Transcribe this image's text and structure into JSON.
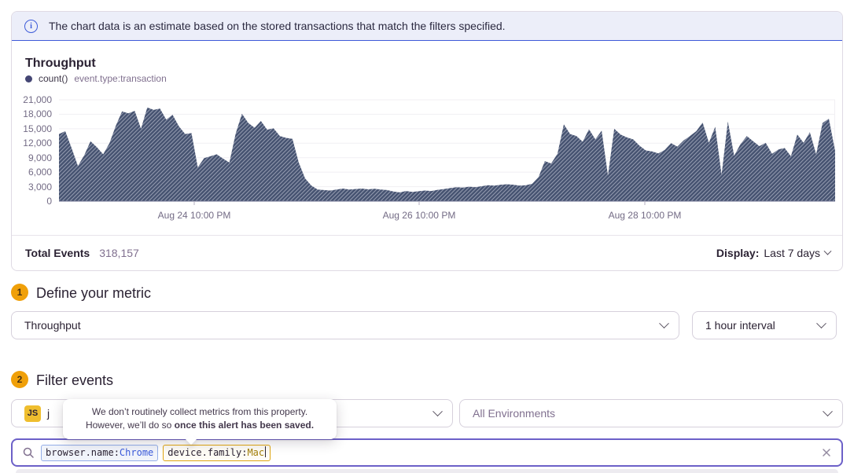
{
  "banner": {
    "text": "The chart data is an estimate based on the stored transactions that match the filters specified."
  },
  "chart": {
    "title": "Throughput",
    "legend": {
      "metric": "count()",
      "filter": "event.type:transaction"
    },
    "footer": {
      "total_label": "Total Events",
      "total_value": "318,157",
      "display_label": "Display:",
      "display_value": "Last 7 days"
    }
  },
  "chart_data": {
    "type": "area",
    "title": "Throughput",
    "subtitle": "count() event.type:transaction",
    "pattern": "diagonal-hatch-estimate",
    "fill_color": "#465371",
    "hatch_color": "#959CB0",
    "grid": "horizontal",
    "ylim": [
      0,
      21000
    ],
    "y_ticks": [
      0,
      3000,
      6000,
      9000,
      12000,
      15000,
      18000,
      21000
    ],
    "y_tick_labels": [
      "0",
      "3,000",
      "6,000",
      "9,000",
      "12,000",
      "15,000",
      "18,000",
      "21,000"
    ],
    "x_ticks": [
      {
        "label": "Aug 24 10:00 PM",
        "pos": 0.1743
      },
      {
        "label": "Aug 26 10:00 PM",
        "pos": 0.464
      },
      {
        "label": "Aug 28 10:00 PM",
        "pos": 0.7548
      }
    ],
    "series": [
      {
        "name": "count()",
        "values": [
          13900,
          14500,
          11000,
          7300,
          9500,
          12400,
          11200,
          9700,
          12000,
          15600,
          18600,
          18200,
          18700,
          15000,
          19400,
          18900,
          19200,
          16900,
          17900,
          15500,
          13900,
          14100,
          7000,
          8900,
          9300,
          9700,
          8800,
          8000,
          14000,
          18100,
          16200,
          15200,
          16600,
          14800,
          15100,
          13500,
          13100,
          12900,
          8000,
          4700,
          3200,
          2400,
          2300,
          2200,
          2400,
          2600,
          2400,
          2500,
          2600,
          2450,
          2550,
          2400,
          2300,
          2000,
          1800,
          2100,
          1900,
          2050,
          2200,
          2100,
          2350,
          2500,
          2700,
          2900,
          2800,
          3000,
          2900,
          3100,
          3300,
          3200,
          3400,
          3500,
          3400,
          3200,
          3300,
          3600,
          5000,
          8300,
          7800,
          9800,
          15900,
          13900,
          13500,
          12300,
          14900,
          12800,
          14600,
          5300,
          15000,
          13800,
          13200,
          12800,
          11500,
          10500,
          10300,
          9900,
          10600,
          12000,
          11300,
          12600,
          13500,
          14500,
          16300,
          12100,
          15400,
          5500,
          16500,
          9400,
          11800,
          13500,
          12400,
          11400,
          12100,
          9800,
          10700,
          11000,
          9300,
          13800,
          12100,
          14300,
          9700,
          16200,
          17100,
          10400
        ]
      }
    ]
  },
  "sections": {
    "metric": {
      "step": "1",
      "title": "Define your metric",
      "metric_select": "Throughput",
      "interval_select": "1 hour interval"
    },
    "filter": {
      "step": "2",
      "title": "Filter events",
      "project_badge": "JS",
      "project_name": "j",
      "environment_select": "All Environments"
    }
  },
  "tooltip": {
    "line1": "We don’t routinely collect metrics from this property.",
    "line2_normal": "However, we’ll do so ",
    "line2_bold": "once this alert has been saved."
  },
  "search": {
    "tokens": [
      {
        "key": "browser.name:",
        "value": "Chrome"
      },
      {
        "key": "device.family:",
        "value": "Mac"
      }
    ]
  }
}
